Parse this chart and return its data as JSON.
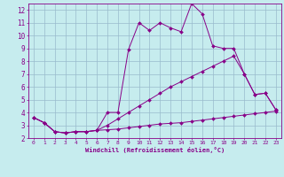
{
  "xlabel": "Windchill (Refroidissement éolien,°C)",
  "xlim": [
    -0.5,
    23.5
  ],
  "ylim": [
    2,
    12.5
  ],
  "xticks": [
    0,
    1,
    2,
    3,
    4,
    5,
    6,
    7,
    8,
    9,
    10,
    11,
    12,
    13,
    14,
    15,
    16,
    17,
    18,
    19,
    20,
    21,
    22,
    23
  ],
  "yticks": [
    2,
    3,
    4,
    5,
    6,
    7,
    8,
    9,
    10,
    11,
    12
  ],
  "bg_color": "#c6ecee",
  "line_color": "#880088",
  "grid_color": "#99bbcc",
  "lines": [
    {
      "x": [
        0,
        1,
        2,
        3,
        4,
        5,
        6,
        7,
        8,
        9,
        10,
        11,
        12,
        13,
        14,
        15,
        16,
        17,
        18,
        19,
        20,
        21,
        22,
        23
      ],
      "y": [
        3.6,
        3.2,
        2.5,
        2.4,
        2.5,
        2.5,
        2.6,
        2.65,
        2.7,
        2.8,
        2.9,
        3.0,
        3.1,
        3.15,
        3.2,
        3.3,
        3.4,
        3.5,
        3.6,
        3.7,
        3.8,
        3.9,
        4.0,
        4.1
      ]
    },
    {
      "x": [
        0,
        1,
        2,
        3,
        4,
        5,
        6,
        7,
        8,
        9,
        10,
        11,
        12,
        13,
        14,
        15,
        16,
        17,
        18,
        19,
        20,
        21,
        22,
        23
      ],
      "y": [
        3.6,
        3.2,
        2.5,
        2.4,
        2.5,
        2.5,
        2.6,
        3.0,
        3.5,
        4.0,
        4.5,
        5.0,
        5.5,
        6.0,
        6.4,
        6.8,
        7.2,
        7.6,
        8.0,
        8.4,
        7.0,
        5.4,
        5.5,
        4.2
      ]
    },
    {
      "x": [
        0,
        1,
        2,
        3,
        4,
        5,
        6,
        7,
        8,
        9,
        10,
        11,
        12,
        13,
        14,
        15,
        16,
        17,
        18,
        19,
        20,
        21,
        22,
        23
      ],
      "y": [
        3.6,
        3.2,
        2.5,
        2.4,
        2.5,
        2.5,
        2.6,
        4.0,
        4.0,
        8.9,
        11.0,
        10.4,
        11.0,
        10.6,
        10.3,
        12.5,
        11.7,
        9.2,
        9.0,
        9.0,
        7.0,
        5.4,
        5.5,
        4.2
      ]
    }
  ]
}
